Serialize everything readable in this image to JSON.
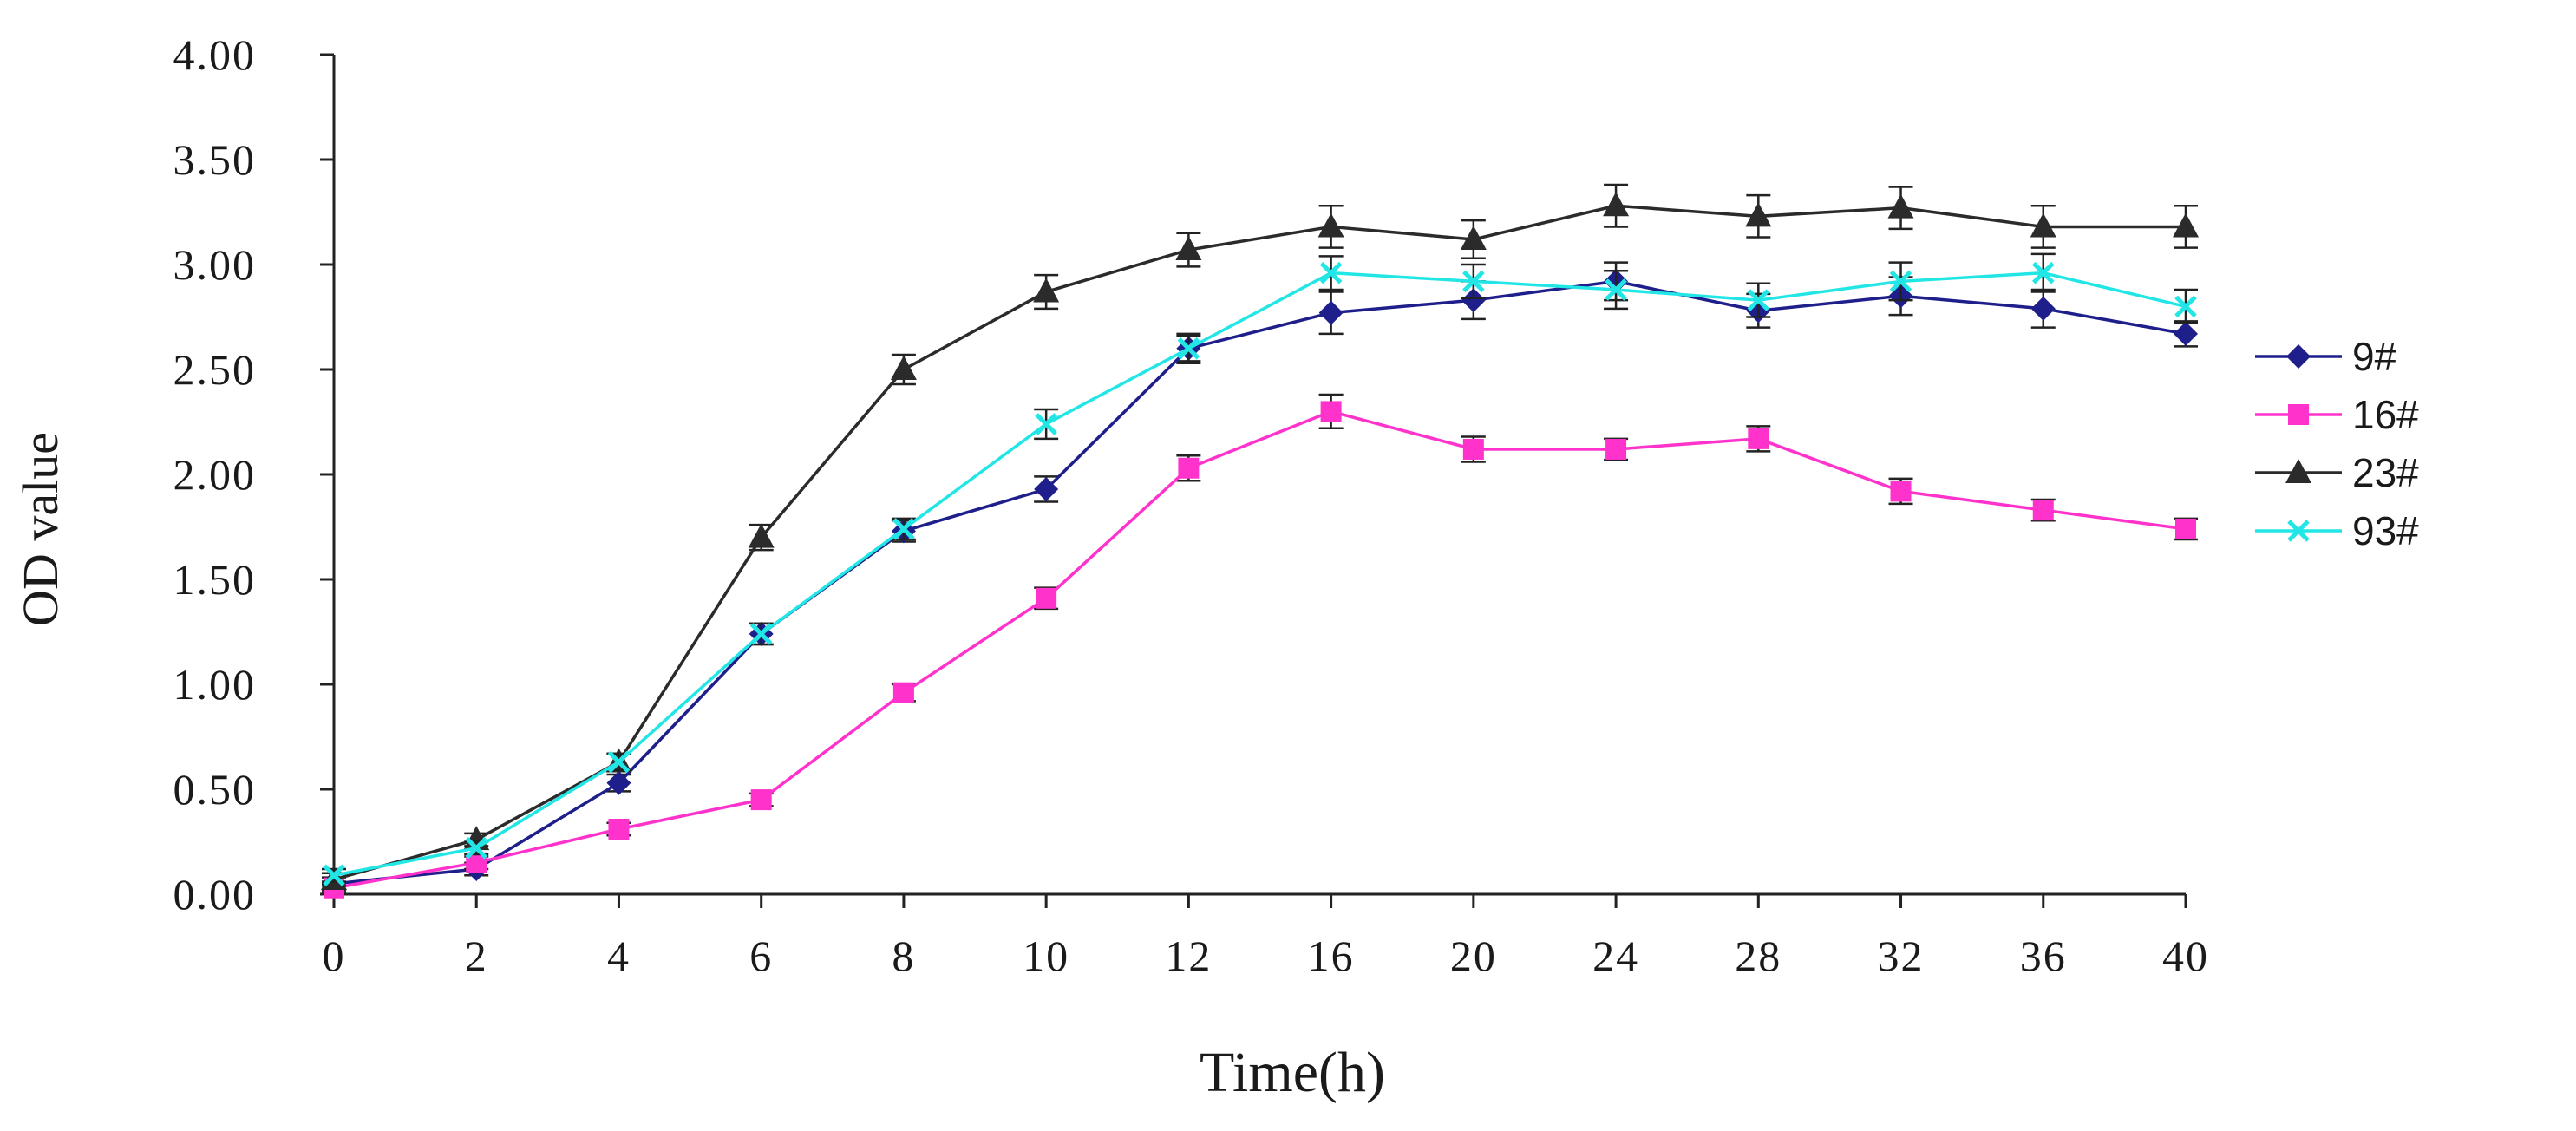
{
  "chart_data": {
    "type": "line",
    "title": "",
    "xlabel": "Time(h)",
    "ylabel": "OD value",
    "categories": [
      "0",
      "2",
      "4",
      "6",
      "8",
      "10",
      "12",
      "16",
      "20",
      "24",
      "28",
      "32",
      "36",
      "40"
    ],
    "ylim": [
      0,
      4
    ],
    "yticks": [
      "0.00",
      "0.50",
      "1.00",
      "1.50",
      "2.00",
      "2.50",
      "3.00",
      "3.50",
      "4.00"
    ],
    "grid": false,
    "legend_position": "right",
    "series": [
      {
        "name": "9#",
        "color": "#1f1f8c",
        "marker": "diamond",
        "values": [
          0.05,
          0.12,
          0.53,
          1.24,
          1.73,
          1.93,
          2.6,
          2.77,
          2.83,
          2.92,
          2.78,
          2.85,
          2.79,
          2.67
        ],
        "errors": [
          0.03,
          0.03,
          0.04,
          0.05,
          0.05,
          0.06,
          0.06,
          0.1,
          0.09,
          0.09,
          0.08,
          0.09,
          0.09,
          0.06
        ]
      },
      {
        "name": "16#",
        "color": "#ff33cc",
        "marker": "square",
        "values": [
          0.03,
          0.15,
          0.31,
          0.45,
          0.96,
          1.41,
          2.03,
          2.3,
          2.12,
          2.12,
          2.17,
          1.92,
          1.83,
          1.74
        ],
        "errors": [
          0.02,
          0.03,
          0.03,
          0.03,
          0.04,
          0.05,
          0.06,
          0.08,
          0.06,
          0.05,
          0.06,
          0.06,
          0.05,
          0.05
        ]
      },
      {
        "name": "23#",
        "color": "#2b2b2b",
        "marker": "triangle",
        "values": [
          0.07,
          0.26,
          0.63,
          1.7,
          2.5,
          2.87,
          3.07,
          3.18,
          3.12,
          3.28,
          3.23,
          3.27,
          3.18,
          3.18
        ],
        "errors": [
          0.03,
          0.03,
          0.04,
          0.06,
          0.07,
          0.08,
          0.08,
          0.1,
          0.09,
          0.1,
          0.1,
          0.1,
          0.1,
          0.1
        ]
      },
      {
        "name": "93#",
        "color": "#22e6e6",
        "marker": "x",
        "values": [
          0.09,
          0.22,
          0.63,
          1.24,
          1.74,
          2.24,
          2.6,
          2.96,
          2.92,
          2.88,
          2.83,
          2.92,
          2.96,
          2.8
        ],
        "errors": [
          0.03,
          0.03,
          0.04,
          0.05,
          0.05,
          0.07,
          0.07,
          0.08,
          0.08,
          0.09,
          0.08,
          0.09,
          0.09,
          0.08
        ]
      }
    ]
  }
}
